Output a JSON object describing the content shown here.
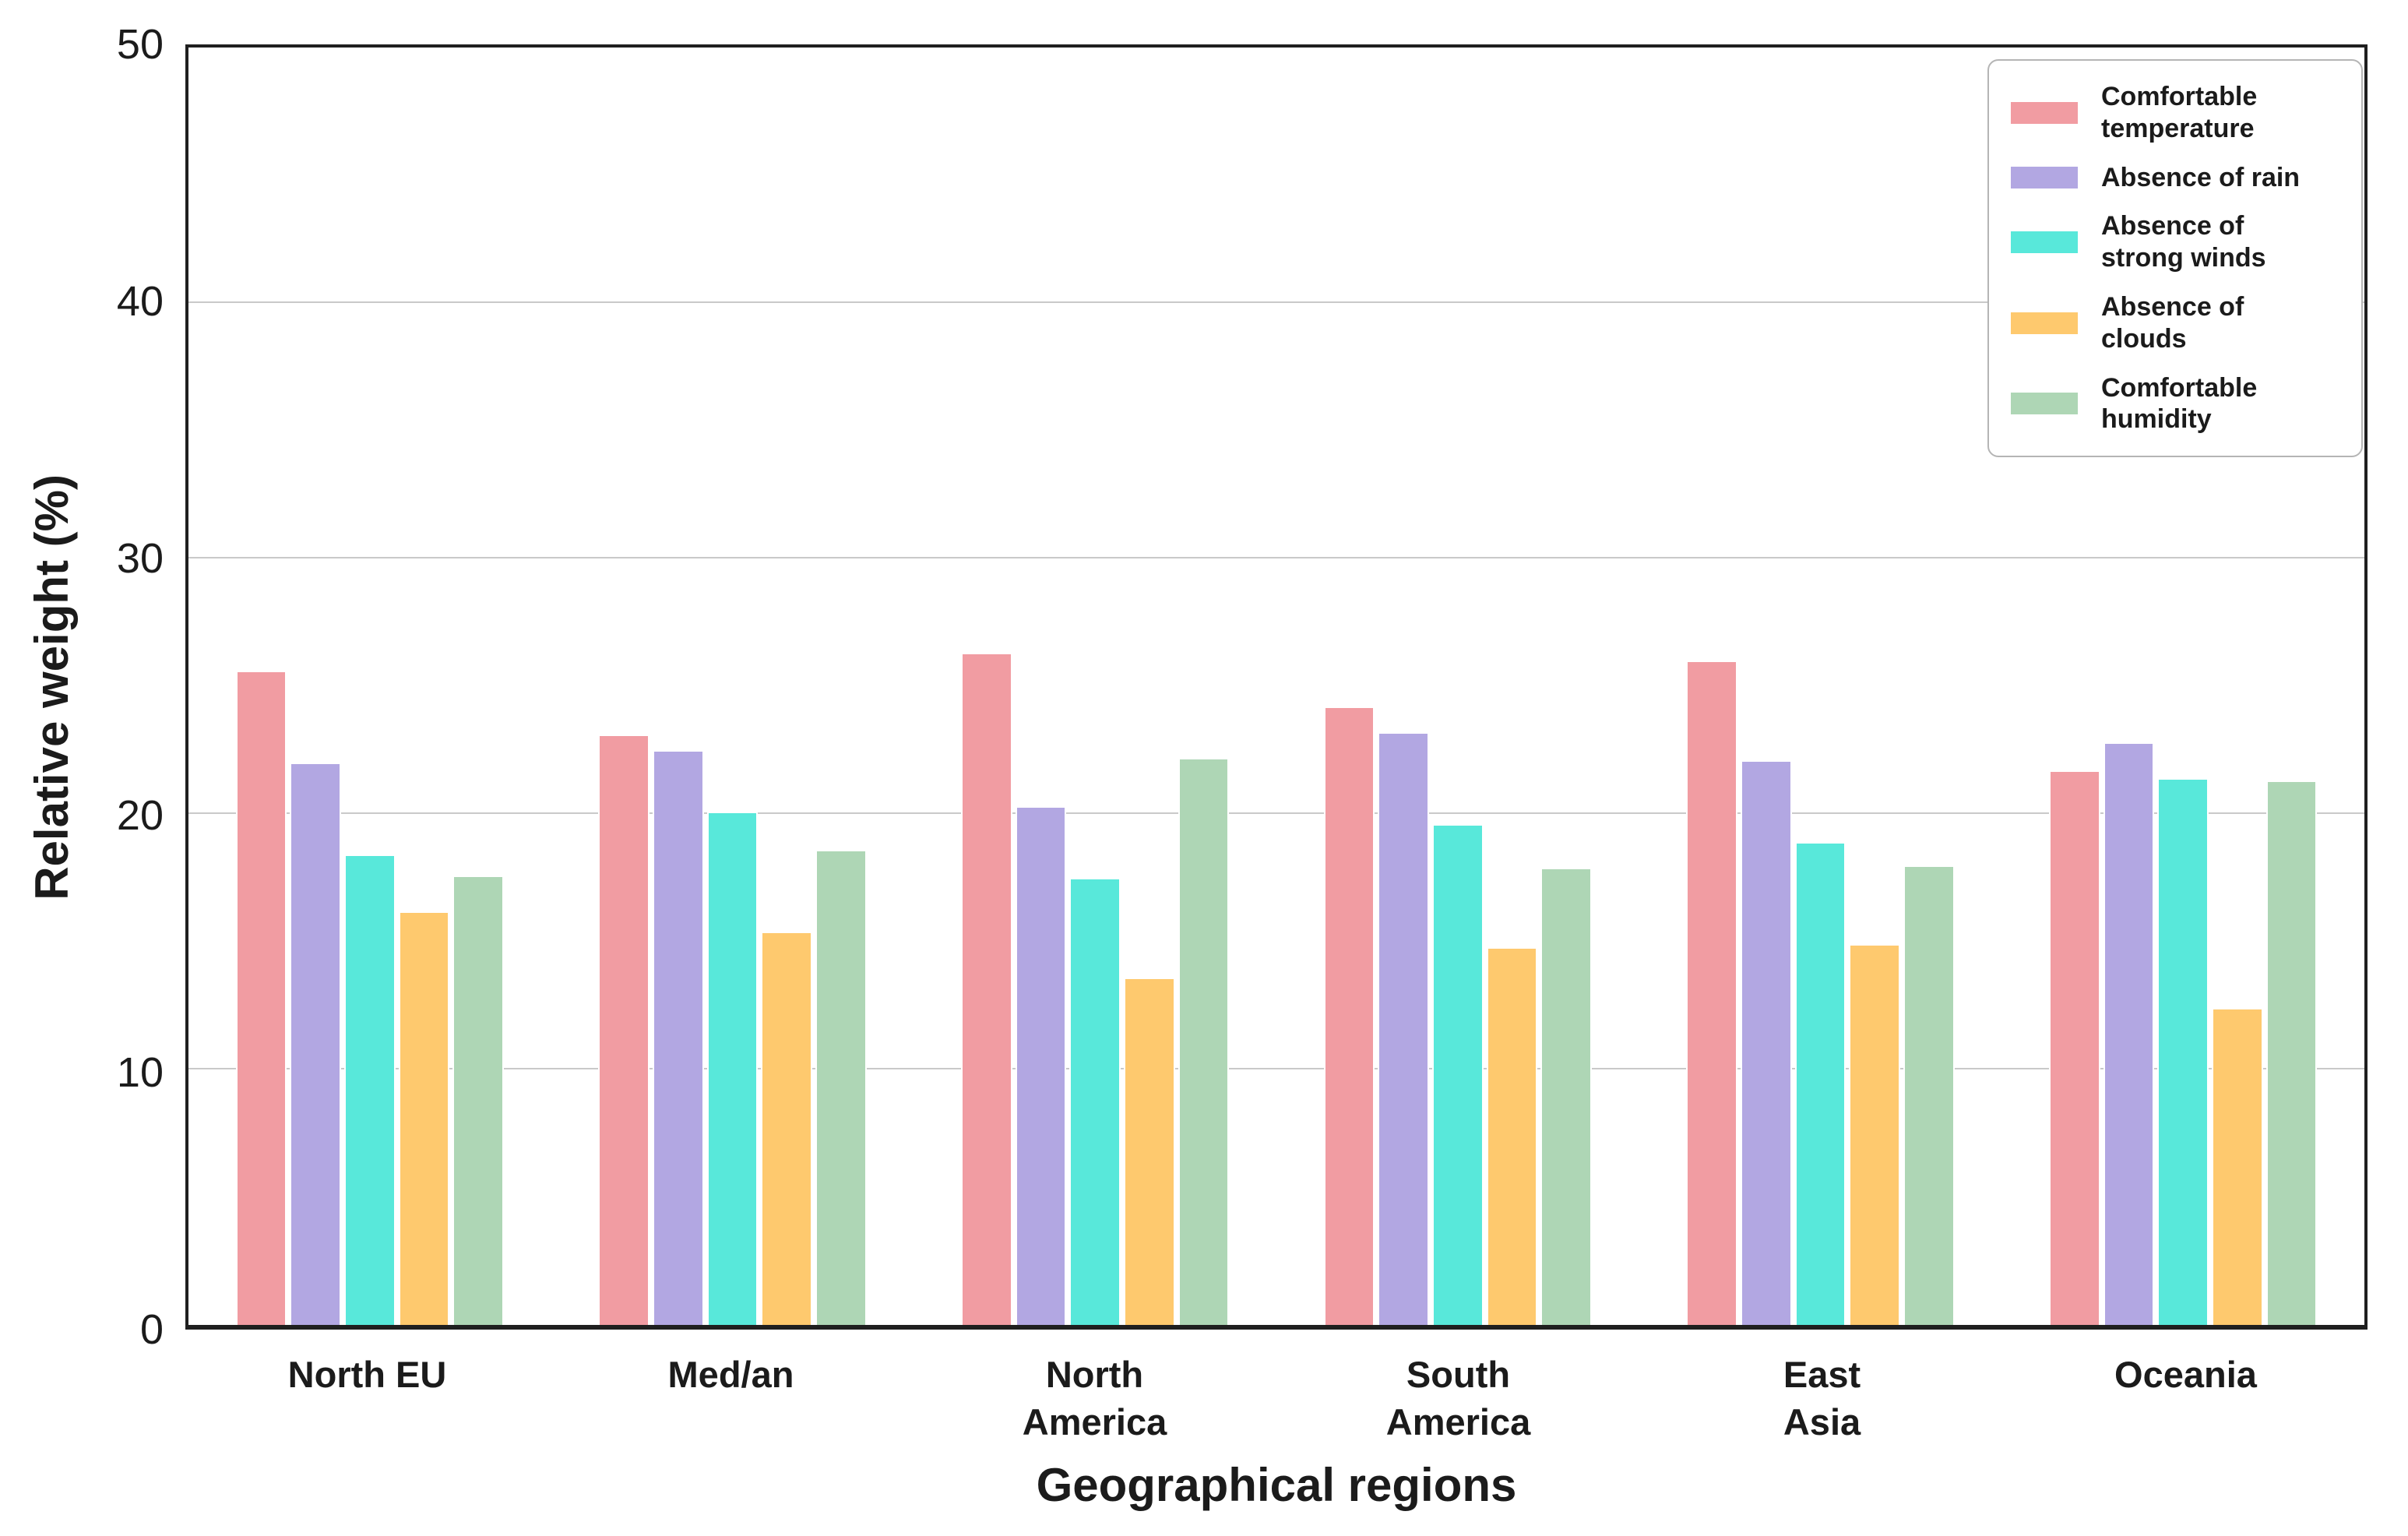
{
  "figure": {
    "background": "#ffffff",
    "text_color": "#1b1b1b",
    "grid_color": "#c9c9c9",
    "spine_color": "#1f1f1f",
    "legend_border_color": "#b5b5b5"
  },
  "chart_data": {
    "type": "bar",
    "title": "",
    "xlabel": "Geographical regions",
    "ylabel": "Relative weight (%)",
    "ylim": [
      0,
      50
    ],
    "yticks": [
      0,
      10,
      20,
      30,
      40,
      50
    ],
    "grid": "horizontal",
    "legend_position": "upper right",
    "categories": [
      "North EU",
      "Med/an",
      "North\nAmerica",
      "South\nAmerica",
      "East\nAsia",
      "Oceania"
    ],
    "series": [
      {
        "name": "Comfortable\ntemperature",
        "color": "#F19CA2",
        "values": [
          25.6,
          23.1,
          26.3,
          24.2,
          26.0,
          21.7
        ]
      },
      {
        "name": "Absence of rain",
        "color": "#B2A7E2",
        "values": [
          22.0,
          22.5,
          20.3,
          23.2,
          22.1,
          22.8
        ]
      },
      {
        "name": "Absence of\nstrong winds",
        "color": "#58E8DA",
        "values": [
          18.4,
          20.1,
          17.5,
          19.6,
          18.9,
          21.4
        ]
      },
      {
        "name": "Absence of\nclouds",
        "color": "#FEC96E",
        "values": [
          16.2,
          15.4,
          13.6,
          14.8,
          14.9,
          12.4
        ]
      },
      {
        "name": "Comfortable\nhumidity",
        "color": "#AED6B5",
        "values": [
          17.6,
          18.6,
          22.2,
          17.9,
          18.0,
          21.3
        ]
      }
    ]
  }
}
